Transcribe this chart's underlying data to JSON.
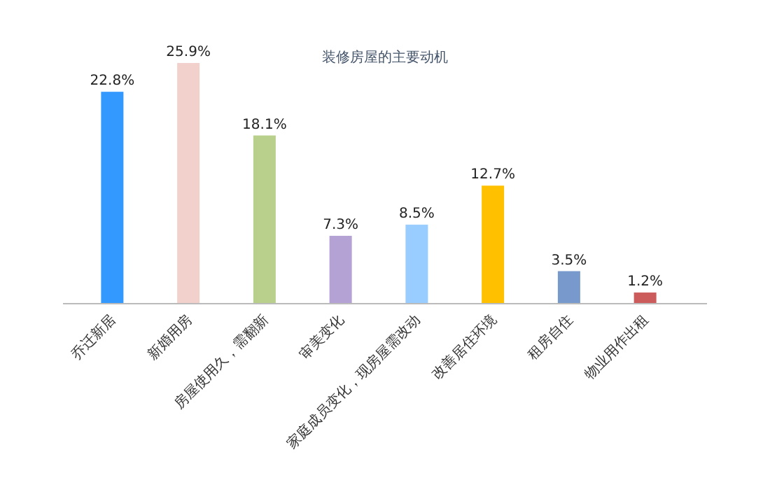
{
  "chart_data": {
    "type": "bar",
    "title": "装修房屋的主要动机",
    "categories": [
      "乔迁新居",
      "新婚用房",
      "房屋使用久，需翻新",
      "审美变化",
      "家庭成员变化，现房屋需改动",
      "改善居住环境",
      "租房自住",
      "物业用作出租"
    ],
    "values": [
      22.8,
      25.9,
      18.1,
      7.3,
      8.5,
      12.7,
      3.5,
      1.2
    ],
    "colors": [
      "#3399ff",
      "#f2d0cc",
      "#b8d08b",
      "#b3a2d3",
      "#99ccff",
      "#ffc000",
      "#7799cc",
      "#cc5b5b"
    ],
    "value_labels": [
      "22.8%",
      "25.9%",
      "18.1%",
      "7.3%",
      "8.5%",
      "12.7%",
      "3.5%",
      "1.2%"
    ]
  }
}
